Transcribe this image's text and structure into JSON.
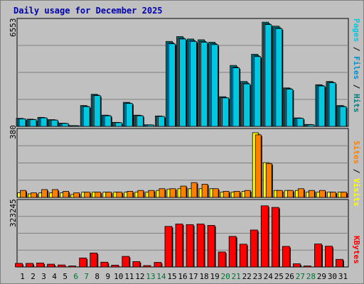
{
  "title": "Daily usage for December 2025",
  "colors": {
    "pages": "#00c8e0",
    "files": "#0090d0",
    "hits": "#008080",
    "visits": "#ffff00",
    "sites": "#ff8000",
    "kbytes": "#ff0000",
    "weekday_label": "#000000",
    "weekend_label": "#007030"
  },
  "labels": {
    "pages": "Pages",
    "files": "Files",
    "hits": "Hits",
    "visits": "Visits",
    "sites": "Sites",
    "kbytes": "KBytes",
    "sep": " / "
  },
  "chart_data": [
    {
      "type": "bar",
      "title": "Daily usage for December 2025",
      "ymax_label": "6553",
      "ylim": [
        0,
        6553
      ],
      "categories": [
        "1",
        "2",
        "3",
        "4",
        "5",
        "6",
        "7",
        "8",
        "9",
        "10",
        "11",
        "12",
        "13",
        "14",
        "15",
        "16",
        "17",
        "18",
        "19",
        "20",
        "21",
        "22",
        "23",
        "24",
        "25",
        "26",
        "27",
        "28",
        "29",
        "30",
        "31"
      ],
      "weekend_days": [
        6,
        7,
        13,
        14,
        20,
        21,
        27,
        28
      ],
      "series": [
        {
          "name": "Hits",
          "values": [
            500,
            450,
            560,
            420,
            200,
            50,
            1300,
            2000,
            700,
            250,
            1500,
            700,
            100,
            650,
            5300,
            5600,
            5450,
            5400,
            5250,
            1850,
            3800,
            2800,
            4500,
            6500,
            6250,
            2400,
            530,
            120,
            2600,
            2800,
            1300
          ]
        },
        {
          "name": "Files",
          "values": [
            480,
            430,
            540,
            400,
            190,
            45,
            1250,
            1950,
            680,
            240,
            1450,
            680,
            95,
            630,
            5200,
            5500,
            5350,
            5300,
            5150,
            1800,
            3700,
            2700,
            4400,
            6400,
            6150,
            2350,
            510,
            110,
            2550,
            2750,
            1250
          ]
        },
        {
          "name": "Pages",
          "values": [
            470,
            420,
            530,
            390,
            180,
            40,
            1230,
            1920,
            660,
            230,
            1430,
            660,
            90,
            620,
            5150,
            5450,
            5300,
            5250,
            5100,
            1780,
            3650,
            2650,
            4350,
            6350,
            6100,
            2320,
            500,
            100,
            2520,
            2720,
            1230
          ]
        }
      ]
    },
    {
      "type": "bar",
      "ymax_label": "380",
      "ylim": [
        0,
        380
      ],
      "categories": [
        "1",
        "2",
        "3",
        "4",
        "5",
        "6",
        "7",
        "8",
        "9",
        "10",
        "11",
        "12",
        "13",
        "14",
        "15",
        "16",
        "17",
        "18",
        "19",
        "20",
        "21",
        "22",
        "23",
        "24",
        "25",
        "26",
        "27",
        "28",
        "29",
        "30",
        "31"
      ],
      "series": [
        {
          "name": "Visits",
          "values": [
            26,
            20,
            26,
            26,
            26,
            16,
            30,
            30,
            30,
            30,
            30,
            30,
            30,
            40,
            48,
            50,
            50,
            50,
            50,
            30,
            30,
            35,
            372,
            200,
            40,
            40,
            40,
            30,
            30,
            30,
            30
          ]
        },
        {
          "name": "Sites",
          "values": [
            40,
            26,
            45,
            45,
            35,
            26,
            30,
            30,
            30,
            30,
            35,
            40,
            40,
            50,
            50,
            65,
            85,
            76,
            50,
            35,
            35,
            40,
            360,
            195,
            40,
            40,
            50,
            40,
            40,
            30,
            30
          ]
        }
      ]
    },
    {
      "type": "bar",
      "ymax_label": "323245",
      "ylim": [
        0,
        323245
      ],
      "categories": [
        "1",
        "2",
        "3",
        "4",
        "5",
        "6",
        "7",
        "8",
        "9",
        "10",
        "11",
        "12",
        "13",
        "14",
        "15",
        "16",
        "17",
        "18",
        "19",
        "20",
        "21",
        "22",
        "23",
        "24",
        "25",
        "26",
        "27",
        "28",
        "29",
        "30",
        "31"
      ],
      "series": [
        {
          "name": "KBytes",
          "values": [
            18000,
            18000,
            20000,
            14000,
            10000,
            5000,
            45000,
            70000,
            24000,
            9000,
            53000,
            27000,
            7000,
            23000,
            203000,
            215000,
            212000,
            215000,
            208000,
            75000,
            153000,
            114000,
            185000,
            306000,
            298000,
            103000,
            16000,
            5000,
            115000,
            104000,
            38000
          ]
        }
      ]
    }
  ]
}
